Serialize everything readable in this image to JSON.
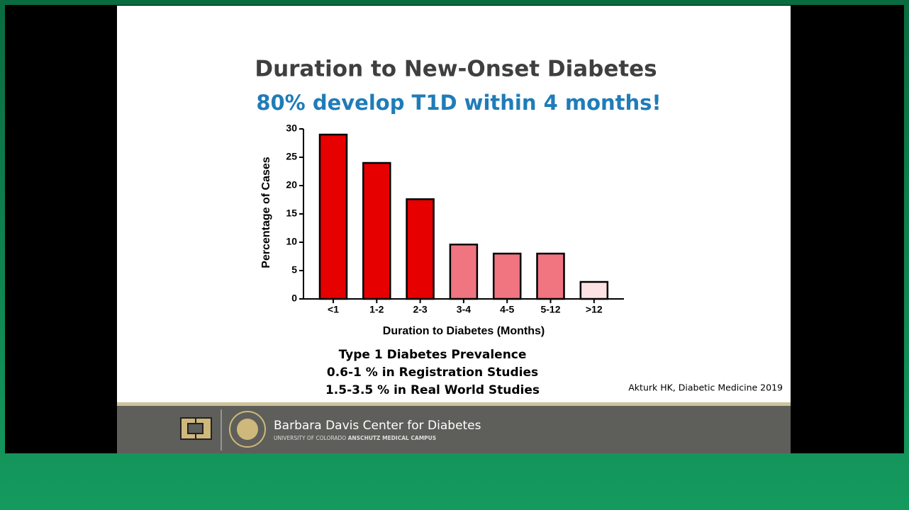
{
  "chart_data": {
    "type": "bar",
    "title": "Duration to New-Onset Diabetes",
    "subtitle": "80% develop T1D within 4 months!",
    "x_label": "Duration to Diabetes (Months)",
    "y_label": "Percentage of Cases",
    "categories": [
      "<1",
      "1-2",
      "2-3",
      "3-4",
      "4-5",
      "5-12",
      ">12"
    ],
    "values": [
      29,
      24,
      17.6,
      9.6,
      8,
      8,
      3
    ],
    "colors": [
      "#e60000",
      "#e60000",
      "#e60000",
      "#f07581",
      "#f07581",
      "#f07581",
      "#fde2e5"
    ],
    "ylim": [
      0,
      30
    ],
    "yticks": [
      0,
      5,
      10,
      15,
      20,
      25,
      30
    ],
    "grid": false
  },
  "notes": [
    "Type 1 Diabetes Prevalence",
    "0.6-1 % in Registration Studies",
    "1.5-3.5 % in Real World Studies"
  ],
  "citation": "Akturk HK, Diabetic Medicine 2019",
  "footer": {
    "center": "Barbara Davis Center for Diabetes",
    "university": "UNIVERSITY OF COLORADO",
    "campus": "ANSCHUTZ MEDICAL CAMPUS"
  }
}
